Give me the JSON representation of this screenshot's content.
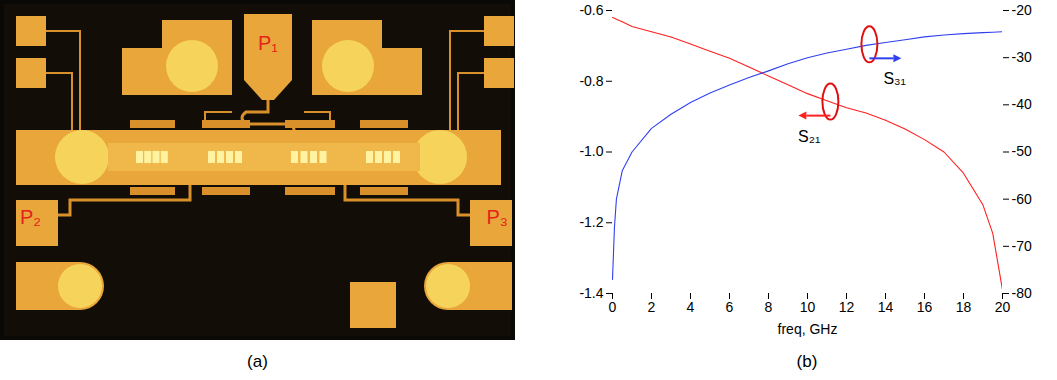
{
  "chart_data": {
    "type": "line",
    "caption": "(b)",
    "xlabel": "freq, GHz",
    "x": [
      0,
      0.1,
      0.2,
      0.5,
      1,
      2,
      3,
      4,
      5,
      6,
      7,
      8,
      9,
      10,
      11,
      12,
      13,
      14,
      15,
      16,
      17,
      18,
      19,
      19.5,
      20
    ],
    "xlim": [
      0,
      20
    ],
    "xticks": [
      0,
      2,
      4,
      6,
      8,
      10,
      12,
      14,
      16,
      18,
      20
    ],
    "ylim": [
      -1.4,
      -0.6
    ],
    "yticks": [
      -1.4,
      -1.2,
      {
        "value": -1,
        "label": "-1.0"
      },
      -0.8,
      -0.6
    ],
    "y2lim": [
      -80,
      -20
    ],
    "y2ticks": [
      -80,
      -70,
      -60,
      -50,
      -40,
      -30,
      -20
    ],
    "grid": false,
    "series": [
      {
        "name": "S₂₁",
        "color": "#ff2020",
        "axis": "y",
        "values": [
          -0.62,
          -0.622,
          -0.625,
          -0.632,
          -0.645,
          -0.66,
          -0.675,
          -0.695,
          -0.715,
          -0.735,
          -0.76,
          -0.785,
          -0.81,
          -0.835,
          -0.855,
          -0.875,
          -0.89,
          -0.91,
          -0.935,
          -0.965,
          -1.0,
          -1.06,
          -1.15,
          -1.23,
          -1.39
        ]
      },
      {
        "name": "S₃₁",
        "color": "#3040f0",
        "axis": "y2",
        "values": [
          -77,
          -66,
          -60,
          -54,
          -50,
          -45,
          -42,
          -39.5,
          -37.5,
          -35.8,
          -34.2,
          -32.8,
          -31.3,
          -30,
          -29,
          -28.2,
          -27.4,
          -26.8,
          -26.2,
          -25.6,
          -25.2,
          -24.9,
          -24.7,
          -24.6,
          -24.5
        ]
      }
    ]
  },
  "image": {
    "caption": "(a)",
    "labels": [
      "P₁",
      "P₂",
      "P₃"
    ]
  }
}
